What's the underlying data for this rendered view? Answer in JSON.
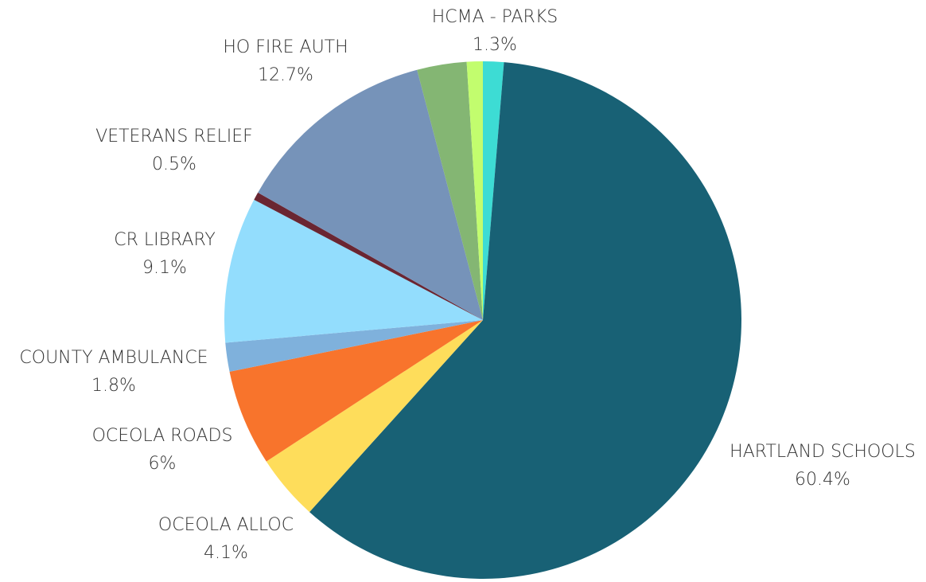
{
  "chart_data": {
    "type": "pie",
    "categories": [
      "HCMA - PARKS",
      "HARTLAND SCHOOLS",
      "OCEOLA ALLOC",
      "OCEOLA ROADS",
      "COUNTY AMBULANCE",
      "CR LIBRARY",
      "VETERANS RELIEF",
      "HO FIRE AUTH",
      null,
      null
    ],
    "values": [
      1.3,
      60.4,
      4.1,
      6,
      1.8,
      9.1,
      0.5,
      12.7,
      3.1,
      1.0
    ],
    "value_labels": [
      "1.3%",
      "60.4%",
      "4.1%",
      "6%",
      "1.8%",
      "9.1%",
      "0.5%",
      "12.7%",
      null,
      null
    ],
    "colors": [
      "#3ddcd4",
      "#186175",
      "#fedd5b",
      "#f8742c",
      "#7fb1dc",
      "#93ddfd",
      "#6a2632",
      "#7693b9",
      "#84b673",
      "#c2fd6e"
    ]
  }
}
